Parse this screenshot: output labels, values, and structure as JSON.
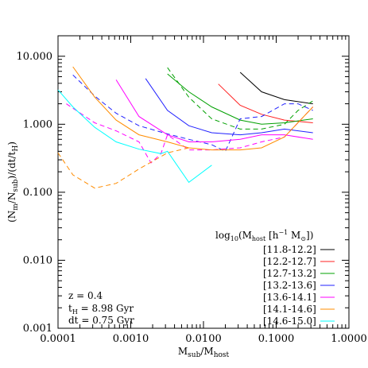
{
  "chart_data": {
    "type": "line",
    "title": "",
    "xlabel": "M_sub/M_host",
    "ylabel": "(N_m/N_sub)/(dt/t_H)",
    "xscale": "log",
    "yscale": "log",
    "xlim": [
      0.0001,
      1.0
    ],
    "ylim": [
      0.001,
      20.0
    ],
    "x_tick_labels": [
      "0.0001",
      "0.0010",
      "0.0100",
      "0.1000",
      "1.0000"
    ],
    "y_tick_labels": [
      "0.001",
      "0.010",
      "0.100",
      "1.000",
      "10.000"
    ],
    "x_ticks": [
      0.0001,
      0.001,
      0.01,
      0.1,
      1.0
    ],
    "y_ticks": [
      0.001,
      0.01,
      0.1,
      1.0,
      10.0
    ],
    "grid": false,
    "legend_title": "log10(M_host [h^-1 M_sun])",
    "legend_position": "lower-right",
    "annotations": [
      "z = 0.4",
      "t_H = 8.98 Gyr",
      "dt = 0.75 Gyr"
    ],
    "series": [
      {
        "name": "[11.8-12.2]",
        "color": "#000000",
        "x": [
          0.032,
          0.063,
          0.13,
          0.32
        ],
        "y": [
          5.8,
          3.0,
          2.3,
          2.0
        ],
        "dashed": false
      },
      {
        "name": "[12.2-12.7]",
        "color": "#ff2020",
        "x": [
          0.016,
          0.032,
          0.063,
          0.13,
          0.32
        ],
        "y": [
          3.9,
          1.9,
          1.4,
          1.15,
          1.05
        ],
        "dashed": false
      },
      {
        "name": "[12.7-13.2]",
        "color": "#00a000",
        "x": [
          0.0032,
          0.0063,
          0.013,
          0.032,
          0.063,
          0.13,
          0.32
        ],
        "y": [
          5.5,
          3.0,
          1.8,
          1.15,
          1.0,
          1.05,
          1.2
        ],
        "dashed": false
      },
      {
        "name": "[12.7-13.2]",
        "color": "#00a000",
        "x": [
          0.0032,
          0.0063,
          0.013,
          0.032,
          0.063,
          0.13,
          0.2,
          0.32
        ],
        "y": [
          6.8,
          2.5,
          1.2,
          0.85,
          0.85,
          1.0,
          1.6,
          2.2
        ],
        "dashed": true
      },
      {
        "name": "[13.2-13.6]",
        "color": "#2020ff",
        "x": [
          0.0016,
          0.0032,
          0.0063,
          0.013,
          0.032,
          0.063,
          0.13,
          0.32
        ],
        "y": [
          4.7,
          1.6,
          0.95,
          0.75,
          0.7,
          0.75,
          0.85,
          0.75
        ],
        "dashed": false
      },
      {
        "name": "[13.2-13.6]",
        "color": "#2020ff",
        "x": [
          0.00016,
          0.00032,
          0.00063,
          0.0013,
          0.0032,
          0.0063,
          0.013,
          0.02,
          0.032,
          0.063,
          0.13,
          0.2,
          0.32
        ],
        "y": [
          5.3,
          2.6,
          1.45,
          0.95,
          0.72,
          0.6,
          0.5,
          0.4,
          1.2,
          1.3,
          2.0,
          2.0,
          1.6
        ],
        "dashed": true
      },
      {
        "name": "[13.6-14.1]",
        "color": "#ff00ff",
        "x": [
          0.00063,
          0.0013,
          0.0032,
          0.0063,
          0.013,
          0.032,
          0.063,
          0.13,
          0.32
        ],
        "y": [
          4.5,
          1.3,
          0.7,
          0.55,
          0.55,
          0.6,
          0.7,
          0.7,
          0.6
        ],
        "dashed": false
      },
      {
        "name": "[13.6-14.1]",
        "color": "#ff00ff",
        "x": [
          0.00013,
          0.00032,
          0.00063,
          0.0013,
          0.0019,
          0.0026,
          0.0032,
          0.0063,
          0.013,
          0.032,
          0.063,
          0.13,
          0.32
        ],
        "y": [
          2.0,
          1.05,
          0.8,
          0.55,
          0.27,
          0.37,
          0.7,
          0.42,
          0.42,
          0.45,
          0.55,
          0.65,
          1.8
        ],
        "dashed": true
      },
      {
        "name": "[14.1-14.6]",
        "color": "#ff8c00",
        "x": [
          0.00016,
          0.00032,
          0.00063,
          0.0013,
          0.0032,
          0.0063,
          0.013,
          0.032,
          0.063,
          0.13,
          0.32
        ],
        "y": [
          7.0,
          2.5,
          1.15,
          0.7,
          0.55,
          0.45,
          0.42,
          0.42,
          0.45,
          0.65,
          1.8
        ],
        "dashed": false
      },
      {
        "name": "[14.1-14.6]",
        "color": "#ff8c00",
        "x": [
          0.0001,
          0.00016,
          0.00032,
          0.00063,
          0.0013,
          0.0032,
          0.0063
        ],
        "y": [
          0.38,
          0.18,
          0.115,
          0.135,
          0.22,
          0.38,
          0.45
        ],
        "dashed": true
      },
      {
        "name": "[14.6-15.0]",
        "color": "#00ffff",
        "x": [
          0.0001,
          0.00016,
          0.00032,
          0.00063,
          0.0013,
          0.0026,
          0.0032,
          0.0063,
          0.013
        ],
        "y": [
          3.2,
          1.8,
          0.9,
          0.55,
          0.43,
          0.37,
          0.4,
          0.14,
          0.25
        ],
        "dashed": false
      }
    ]
  },
  "labels": {
    "x_label_main": "M",
    "x_label_sub": "sub",
    "x_label_mid": "/M",
    "x_label_sub2": "host",
    "y_label_1": "(N",
    "y_label_1s": "m",
    "y_label_2": "/N",
    "y_label_2s": "sub",
    "y_label_3": ")/(dt/t",
    "y_label_3s": "H",
    "y_label_4": ")",
    "legend_title_a": "log",
    "legend_title_a_sub": "10",
    "legend_title_b": "(M",
    "legend_title_b_sub": "host",
    "legend_title_c": " [h",
    "legend_title_c_sup": "−1",
    "legend_title_d": " M",
    "legend_title_d_sub": "⊙",
    "legend_title_e": "])",
    "note_z": "z = 0.4",
    "note_th_a": "t",
    "note_th_sub": "H",
    "note_th_b": " = 8.98 Gyr",
    "note_dt": "dt = 0.75 Gyr"
  },
  "legend": [
    {
      "label": "[11.8-12.2]",
      "color": "#000000"
    },
    {
      "label": "[12.2-12.7]",
      "color": "#ff2020"
    },
    {
      "label": "[12.7-13.2]",
      "color": "#00a000"
    },
    {
      "label": "[13.2-13.6]",
      "color": "#2020ff"
    },
    {
      "label": "[13.6-14.1]",
      "color": "#ff00ff"
    },
    {
      "label": "[14.1-14.6]",
      "color": "#ff8c00"
    },
    {
      "label": "[14.6-15.0]",
      "color": "#00ffff"
    }
  ]
}
